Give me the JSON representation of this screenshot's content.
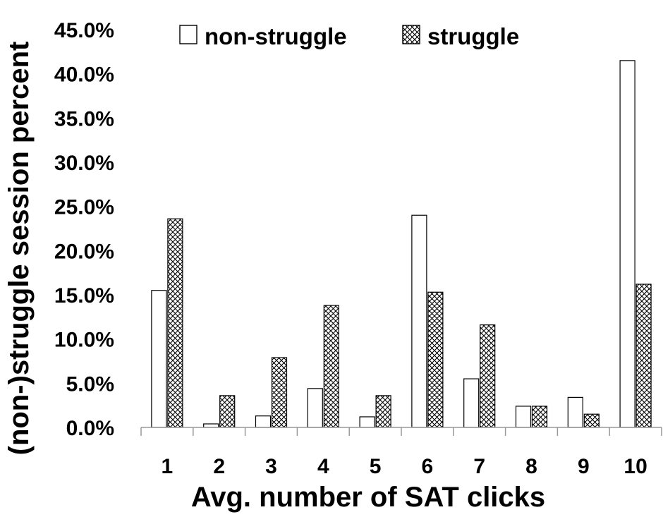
{
  "chart_data": {
    "type": "bar",
    "xlabel": "Avg. number of SAT clicks",
    "ylabel": "(non-)struggle session percent",
    "categories": [
      "1",
      "2",
      "3",
      "4",
      "5",
      "6",
      "7",
      "8",
      "9",
      "10"
    ],
    "ylim": [
      0,
      45
    ],
    "yticks": [
      "0.0%",
      "5.0%",
      "10.0%",
      "15.0%",
      "20.0%",
      "25.0%",
      "30.0%",
      "35.0%",
      "40.0%",
      "45.0%"
    ],
    "grid": false,
    "legend_position": "top",
    "series": [
      {
        "name": "non-struggle",
        "fill": "solid",
        "color": "#ffffff",
        "values": [
          15.5,
          0.4,
          1.3,
          4.4,
          1.2,
          24.0,
          5.5,
          2.4,
          3.4,
          41.5
        ]
      },
      {
        "name": "struggle",
        "fill": "crosshatch",
        "color": "#000000",
        "values": [
          23.6,
          3.6,
          7.9,
          13.8,
          3.6,
          15.3,
          11.6,
          2.4,
          1.5,
          16.2
        ]
      }
    ]
  }
}
